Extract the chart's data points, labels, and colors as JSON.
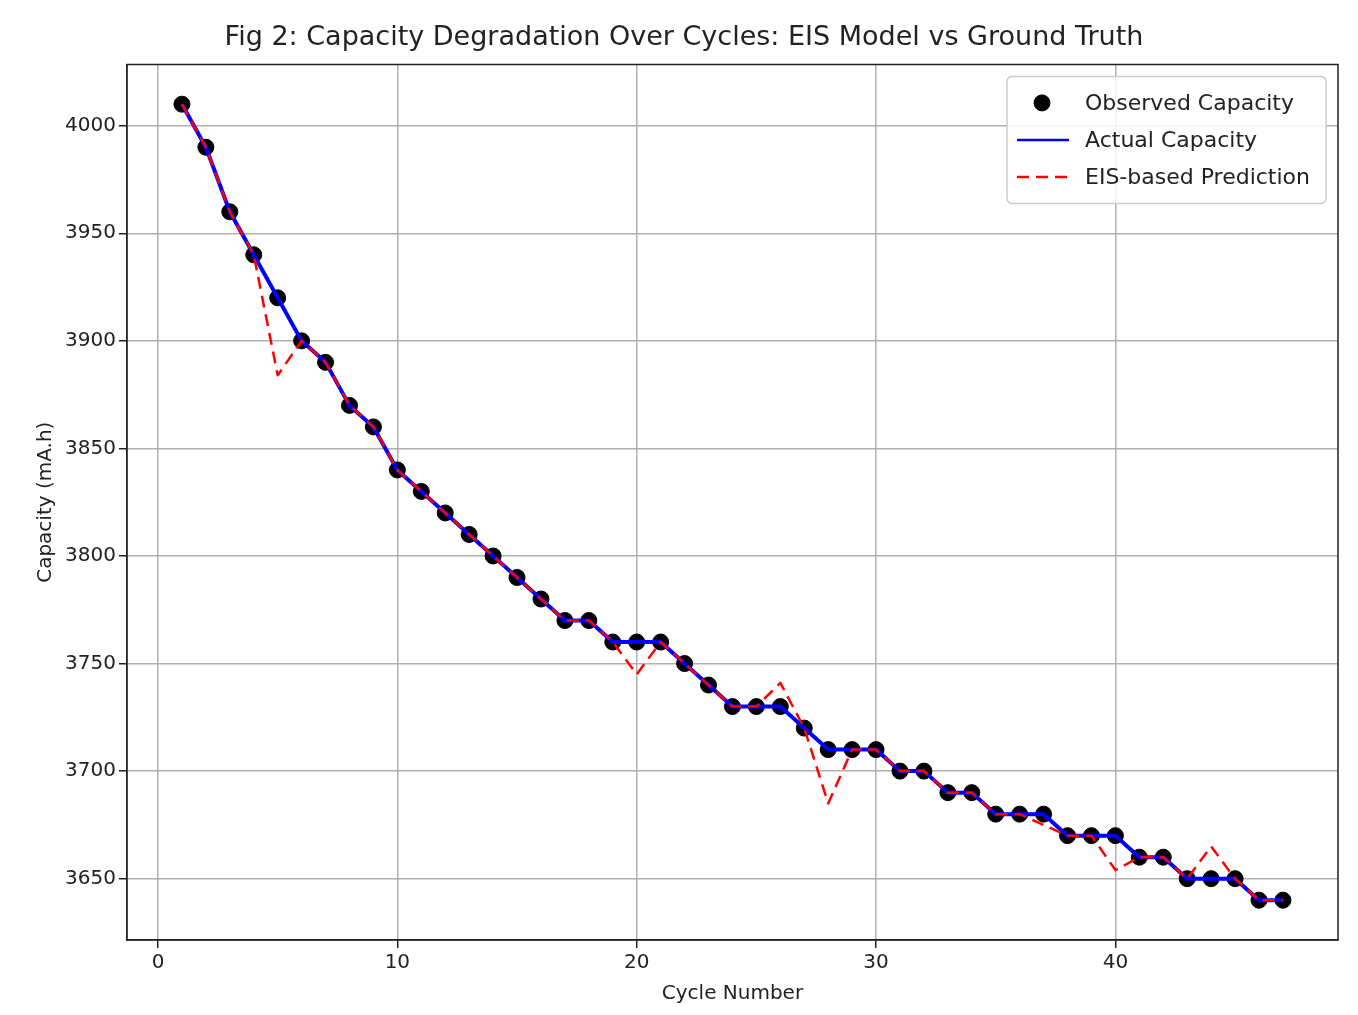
{
  "chart_data": {
    "type": "line",
    "title": "Fig 2: Capacity Degradation Over Cycles: EIS Model vs Ground Truth",
    "xlabel": "Cycle Number",
    "ylabel": "Capacity (mA.h)",
    "x": [
      1,
      2,
      3,
      4,
      5,
      6,
      7,
      8,
      9,
      10,
      11,
      12,
      13,
      14,
      15,
      16,
      17,
      18,
      19,
      20,
      21,
      22,
      23,
      24,
      25,
      26,
      27,
      28,
      29,
      30,
      31,
      32,
      33,
      34,
      35,
      36,
      37,
      38,
      39,
      40,
      41,
      42,
      43,
      44,
      45,
      46,
      47
    ],
    "series": [
      {
        "name": "Observed Capacity",
        "type": "scatter",
        "color": "#000000",
        "marker": "circle",
        "values": [
          4010,
          3990,
          3960,
          3940,
          3920,
          3900,
          3890,
          3870,
          3860,
          3840,
          3830,
          3820,
          3810,
          3800,
          3790,
          3780,
          3770,
          3770,
          3760,
          3760,
          3760,
          3750,
          3740,
          3730,
          3730,
          3730,
          3720,
          3710,
          3710,
          3710,
          3700,
          3700,
          3690,
          3690,
          3680,
          3680,
          3680,
          3670,
          3670,
          3670,
          3660,
          3660,
          3650,
          3650,
          3650,
          3640,
          3640
        ]
      },
      {
        "name": "Actual Capacity",
        "type": "line",
        "color": "#0000ff",
        "line_style": "solid",
        "values": [
          4010,
          3990,
          3960,
          3940,
          3920,
          3900,
          3890,
          3870,
          3860,
          3840,
          3830,
          3820,
          3810,
          3800,
          3790,
          3780,
          3770,
          3770,
          3760,
          3760,
          3760,
          3750,
          3740,
          3730,
          3730,
          3730,
          3720,
          3710,
          3710,
          3710,
          3700,
          3700,
          3690,
          3690,
          3680,
          3680,
          3680,
          3670,
          3670,
          3670,
          3660,
          3660,
          3650,
          3650,
          3650,
          3640,
          3640
        ]
      },
      {
        "name": "EIS-based Prediction",
        "type": "line",
        "color": "#ff0000",
        "line_style": "dashed",
        "values": [
          4010,
          3990,
          3960,
          3940,
          3884,
          3900,
          3890,
          3870,
          3860,
          3840,
          3830,
          3820,
          3810,
          3800,
          3790,
          3780,
          3770,
          3770,
          3760,
          3745,
          3760,
          3750,
          3740,
          3730,
          3730,
          3741,
          3720,
          3685,
          3710,
          3710,
          3700,
          3700,
          3690,
          3690,
          3680,
          3680,
          3675,
          3670,
          3670,
          3654,
          3660,
          3660,
          3650,
          3665,
          3650,
          3640,
          3640
        ]
      }
    ],
    "xlim": [
      -1.3,
      49.3
    ],
    "xticks": [
      0,
      10,
      20,
      30,
      40
    ],
    "ylim": [
      3621.5,
      4028.5
    ],
    "yticks": [
      3650,
      3700,
      3750,
      3800,
      3850,
      3900,
      3950,
      4000
    ],
    "grid": true,
    "legend": "top right",
    "marker": "none"
  }
}
